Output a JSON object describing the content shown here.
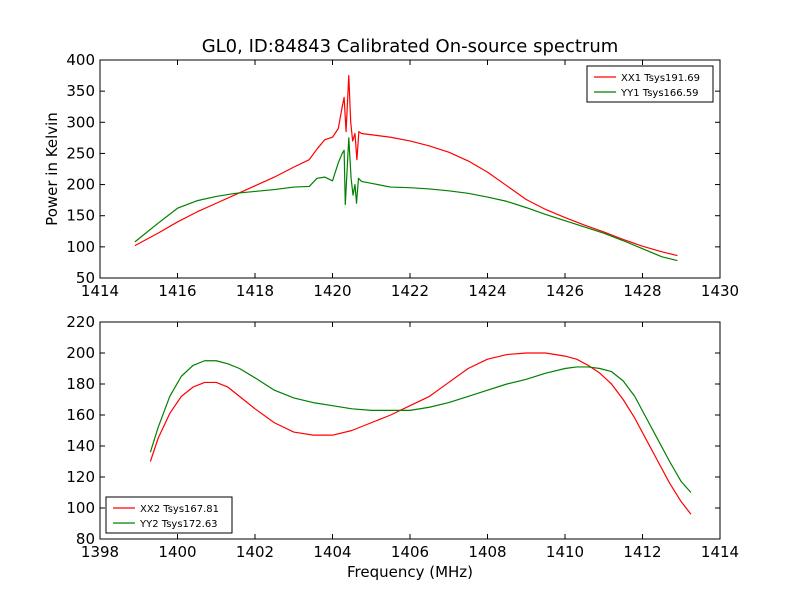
{
  "title": "GL0, ID:84843 Calibrated On-source spectrum",
  "xlabel": "Frequency (MHz)",
  "colors": {
    "red": "#ff0000",
    "green": "#008000"
  },
  "chart_data": [
    {
      "type": "line",
      "ylabel": "Power in Kelvin",
      "xlim": [
        1414,
        1430
      ],
      "ylim": [
        50,
        400
      ],
      "xticks": [
        "1414",
        "1416",
        "1418",
        "1420",
        "1422",
        "1424",
        "1426",
        "1428",
        "1430"
      ],
      "yticks": [
        "50",
        "100",
        "150",
        "200",
        "250",
        "300",
        "350",
        "400"
      ],
      "legend_position": "top-right",
      "series": [
        {
          "name": "XX1 Tsys191.69",
          "color": "#ff0000",
          "x": [
            1414.9,
            1415.5,
            1416,
            1416.5,
            1417,
            1417.5,
            1418,
            1418.5,
            1419,
            1419.4,
            1419.6,
            1419.8,
            1420.0,
            1420.15,
            1420.25,
            1420.3,
            1420.35,
            1420.42,
            1420.47,
            1420.52,
            1420.58,
            1420.63,
            1420.68,
            1420.75,
            1421,
            1421.5,
            1422,
            1422.5,
            1423,
            1423.5,
            1424,
            1424.5,
            1425,
            1425.5,
            1426,
            1426.5,
            1427,
            1427.5,
            1428,
            1428.5,
            1428.9
          ],
          "y": [
            102,
            122,
            140,
            156,
            170,
            184,
            198,
            212,
            228,
            240,
            257,
            272,
            276,
            290,
            325,
            340,
            285,
            375,
            300,
            270,
            282,
            240,
            285,
            282,
            280,
            276,
            270,
            262,
            252,
            238,
            220,
            198,
            176,
            160,
            147,
            135,
            124,
            112,
            101,
            92,
            86
          ]
        },
        {
          "name": "YY1 Tsys166.59",
          "color": "#008000",
          "x": [
            1414.9,
            1415.5,
            1416,
            1416.5,
            1417,
            1417.5,
            1418,
            1418.5,
            1419,
            1419.4,
            1419.6,
            1419.8,
            1420.0,
            1420.15,
            1420.25,
            1420.3,
            1420.33,
            1420.37,
            1420.42,
            1420.48,
            1420.53,
            1420.58,
            1420.62,
            1420.67,
            1420.75,
            1421,
            1421.5,
            1422,
            1422.5,
            1423,
            1423.5,
            1424,
            1424.5,
            1425,
            1425.5,
            1426,
            1426.5,
            1427,
            1427.5,
            1428,
            1428.5,
            1428.9
          ],
          "y": [
            108,
            138,
            162,
            174,
            181,
            186,
            189,
            192,
            196,
            197,
            210,
            212,
            206,
            235,
            250,
            255,
            168,
            215,
            275,
            210,
            183,
            200,
            170,
            210,
            205,
            202,
            196,
            195,
            193,
            190,
            186,
            180,
            173,
            163,
            152,
            142,
            132,
            122,
            110,
            97,
            84,
            78
          ]
        }
      ]
    },
    {
      "type": "line",
      "ylabel": "",
      "xlim": [
        1398,
        1414
      ],
      "ylim": [
        80,
        220
      ],
      "xticks": [
        "1398",
        "1400",
        "1402",
        "1404",
        "1406",
        "1408",
        "1410",
        "1412",
        "1414"
      ],
      "yticks": [
        "80",
        "100",
        "120",
        "140",
        "160",
        "180",
        "200",
        "220"
      ],
      "legend_position": "bottom-left",
      "series": [
        {
          "name": "XX2 Tsys167.81",
          "color": "#ff0000",
          "x": [
            1399.3,
            1399.5,
            1399.8,
            1400.1,
            1400.4,
            1400.7,
            1401,
            1401.3,
            1401.6,
            1402,
            1402.5,
            1403,
            1403.5,
            1404,
            1404.5,
            1405,
            1405.5,
            1406,
            1406.5,
            1407,
            1407.5,
            1408,
            1408.5,
            1409,
            1409.5,
            1410,
            1410.3,
            1410.6,
            1410.9,
            1411.2,
            1411.5,
            1411.8,
            1412.1,
            1412.4,
            1412.7,
            1413,
            1413.25
          ],
          "y": [
            130,
            145,
            161,
            172,
            178,
            181,
            181,
            178,
            172,
            164,
            155,
            149,
            147,
            147,
            150,
            155,
            160,
            166,
            172,
            181,
            190,
            196,
            199,
            200,
            200,
            198,
            196,
            192,
            187,
            180,
            170,
            158,
            144,
            130,
            116,
            104,
            96
          ]
        },
        {
          "name": "YY2 Tsys172.63",
          "color": "#008000",
          "x": [
            1399.3,
            1399.5,
            1399.8,
            1400.1,
            1400.4,
            1400.7,
            1401,
            1401.3,
            1401.6,
            1402,
            1402.5,
            1403,
            1403.5,
            1404,
            1404.5,
            1405,
            1405.5,
            1406,
            1406.5,
            1407,
            1407.5,
            1408,
            1408.5,
            1409,
            1409.5,
            1410,
            1410.3,
            1410.6,
            1410.9,
            1411.2,
            1411.5,
            1411.8,
            1412.1,
            1412.4,
            1412.7,
            1413,
            1413.25
          ],
          "y": [
            136,
            152,
            172,
            185,
            192,
            195,
            195,
            193,
            190,
            184,
            176,
            171,
            168,
            166,
            164,
            163,
            163,
            163,
            165,
            168,
            172,
            176,
            180,
            183,
            187,
            190,
            191,
            191,
            190,
            188,
            182,
            172,
            158,
            144,
            130,
            117,
            110
          ]
        }
      ]
    }
  ]
}
